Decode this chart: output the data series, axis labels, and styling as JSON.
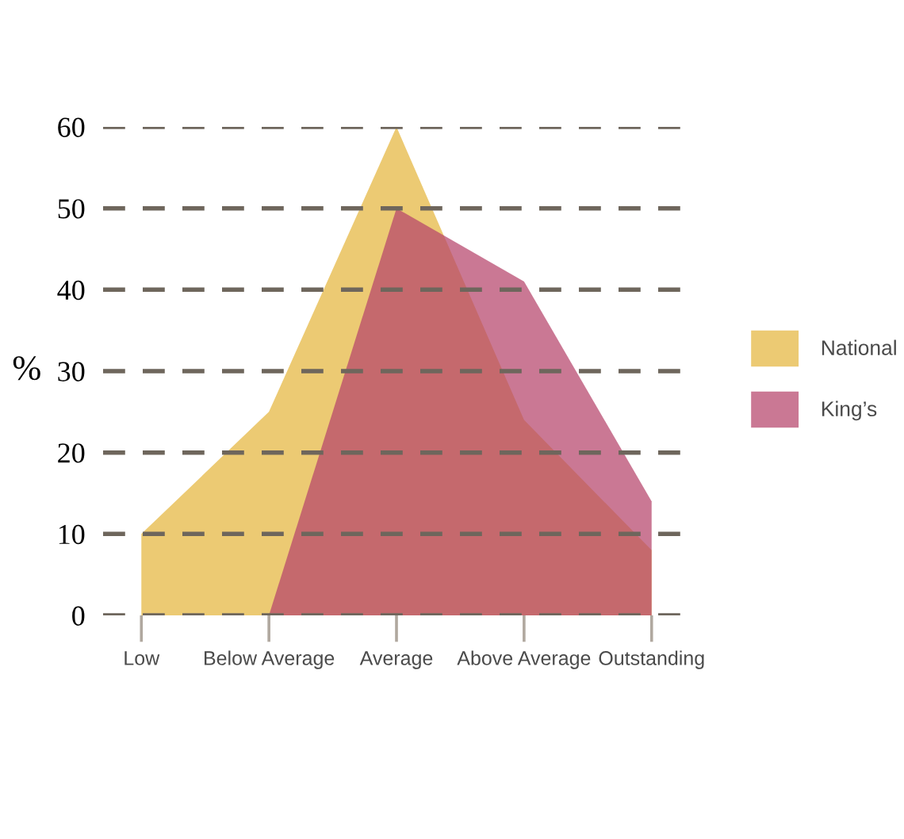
{
  "chart_data": {
    "type": "area",
    "categories": [
      "Low",
      "Below Average",
      "Average",
      "Above Average",
      "Outstanding"
    ],
    "series": [
      {
        "name": "National",
        "color": "#e9c15a",
        "values": [
          10,
          25,
          60,
          24,
          8
        ]
      },
      {
        "name": "King’s",
        "color": "#b5446b",
        "values": [
          null,
          0,
          50,
          41,
          14
        ]
      }
    ],
    "ylabel": "%",
    "ylim": [
      0,
      60
    ],
    "yticks": [
      0,
      10,
      20,
      30,
      40,
      50,
      60
    ],
    "grid": "y",
    "legend": "right"
  }
}
